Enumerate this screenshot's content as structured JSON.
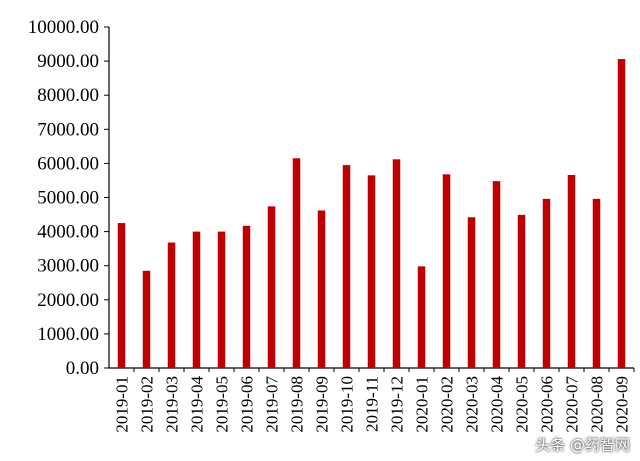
{
  "chart_data": {
    "type": "bar",
    "categories": [
      "2019-01",
      "2019-02",
      "2019-03",
      "2019-04",
      "2019-05",
      "2019-06",
      "2019-07",
      "2019-08",
      "2019-09",
      "2019-10",
      "2019-11",
      "2019-12",
      "2020-01",
      "2020-02",
      "2020-03",
      "2020-04",
      "2020-05",
      "2020-06",
      "2020-07",
      "2020-08",
      "2020-09"
    ],
    "values": [
      4250,
      2850,
      3680,
      4000,
      4000,
      4170,
      4740,
      6150,
      4620,
      5950,
      5650,
      6120,
      2980,
      5680,
      4420,
      5480,
      4490,
      4960,
      5660,
      4960,
      9060
    ],
    "ylim": [
      0,
      10000
    ],
    "yticks": [
      "0.00",
      "1000.00",
      "2000.00",
      "3000.00",
      "4000.00",
      "5000.00",
      "6000.00",
      "7000.00",
      "8000.00",
      "9000.00",
      "10000.00"
    ],
    "bar_color": "#c00000",
    "grid": false,
    "title": "",
    "xlabel": "",
    "ylabel": ""
  },
  "watermark": "头条 @药智网"
}
